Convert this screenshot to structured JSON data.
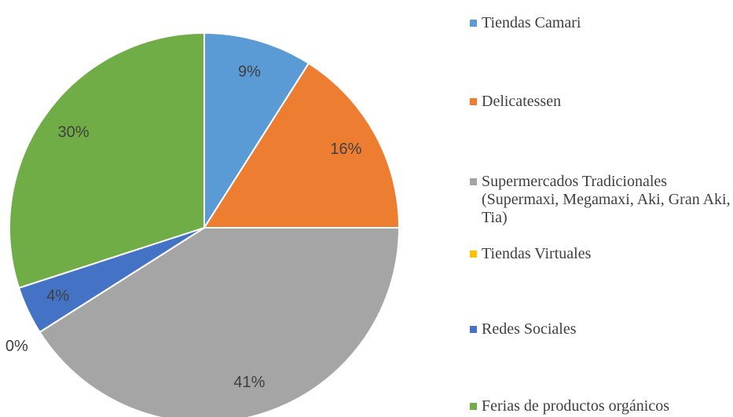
{
  "chart_data": {
    "type": "pie",
    "categories": [
      "Tiendas Camari",
      "Delicatessen",
      "Supermercados Tradicionales (Supermaxi, Megamaxi, Aki, Gran Aki, Tia)",
      "Tiendas Virtuales",
      "Redes Sociales",
      "Ferias de productos orgánicos"
    ],
    "values": [
      9,
      16,
      41,
      0,
      4,
      30
    ],
    "value_labels": [
      "9%",
      "16%",
      "41%",
      "0%",
      "4%",
      "30%"
    ],
    "colors": [
      "#5b9bd5",
      "#ed7d31",
      "#a5a5a5",
      "#ffc000",
      "#4472c4",
      "#70ad47"
    ],
    "legend": "right"
  }
}
